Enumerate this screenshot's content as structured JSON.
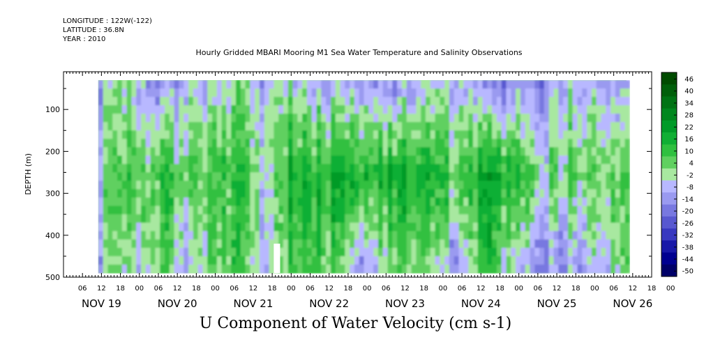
{
  "header": {
    "longitude": "LONGITUDE : 122W(-122)",
    "latitude": "LATITUDE : 36.8N",
    "year": "YEAR : 2010"
  },
  "chart_data": {
    "type": "heatmap",
    "title": "Hourly Gridded MBARI Mooring M1 Sea Water Temperature and Salinity Observations",
    "bottom_title": "U Component of Water Velocity (cm s-1)",
    "ylabel": "DEPTH (m)",
    "ylim": [
      500,
      10
    ],
    "yticks": [
      "100",
      "200",
      "300",
      "400",
      "500"
    ],
    "x_hour_labels": [
      "06",
      "12",
      "18",
      "00",
      "06",
      "12",
      "18",
      "00",
      "06",
      "12",
      "18",
      "00",
      "06",
      "12",
      "18",
      "00",
      "06",
      "12",
      "18",
      "00",
      "06",
      "12",
      "18",
      "00",
      "06",
      "12",
      "18",
      "00",
      "06",
      "12",
      "18",
      "00"
    ],
    "x_day_labels": [
      "NOV 19",
      "NOV 20",
      "NOV 21",
      "NOV 22",
      "NOV 23",
      "NOV 24",
      "NOV 25",
      "NOV 26"
    ],
    "colorbar": {
      "labels": [
        "46",
        "40",
        "34",
        "28",
        "22",
        "16",
        "10",
        "4",
        "-2",
        "-8",
        "-14",
        "-20",
        "-26",
        "-32",
        "-38",
        "-44",
        "-50"
      ],
      "colors": [
        "#004b00",
        "#005f0a",
        "#007314",
        "#00871e",
        "#009b28",
        "#10af34",
        "#30c040",
        "#60d060",
        "#a8e8a0",
        "#b8b8ff",
        "#9a9af0",
        "#7878e0",
        "#5858d0",
        "#3838c0",
        "#1818a8",
        "#000090",
        "#000068"
      ]
    },
    "data_start_hour": 11,
    "data_end_hour": 178,
    "gap": {
      "start_hour": 66.5,
      "end_hour": 68.5,
      "depth_from": 420
    },
    "profile": [
      {
        "hour": 11,
        "surface": -6,
        "middle": 0,
        "deep": -4
      },
      {
        "hour": 20,
        "surface": -4,
        "middle": 8,
        "deep": -2
      },
      {
        "hour": 32,
        "surface": -12,
        "middle": 12,
        "deep": 4
      },
      {
        "hour": 38,
        "surface": -8,
        "middle": 6,
        "deep": -16
      },
      {
        "hour": 46,
        "surface": -2,
        "middle": 10,
        "deep": 8
      },
      {
        "hour": 55,
        "surface": 4,
        "middle": 14,
        "deep": 10
      },
      {
        "hour": 64,
        "surface": -8,
        "middle": -4,
        "deep": -10
      },
      {
        "hour": 72,
        "surface": 2,
        "middle": 20,
        "deep": 14
      },
      {
        "hour": 84,
        "surface": -10,
        "middle": 16,
        "deep": 6
      },
      {
        "hour": 94,
        "surface": -4,
        "middle": 20,
        "deep": -12
      },
      {
        "hour": 104,
        "surface": -12,
        "middle": 18,
        "deep": 6
      },
      {
        "hour": 115,
        "surface": -8,
        "middle": 14,
        "deep": -2
      },
      {
        "hour": 124,
        "surface": -6,
        "middle": 10,
        "deep": -18
      },
      {
        "hour": 133,
        "surface": -10,
        "middle": 24,
        "deep": 16
      },
      {
        "hour": 143,
        "surface": -14,
        "middle": 12,
        "deep": -10
      },
      {
        "hour": 154,
        "surface": -8,
        "middle": 4,
        "deep": -14
      },
      {
        "hour": 166,
        "surface": -2,
        "middle": 10,
        "deep": -6
      },
      {
        "hour": 178,
        "surface": -10,
        "middle": 6,
        "deep": 4
      }
    ]
  }
}
